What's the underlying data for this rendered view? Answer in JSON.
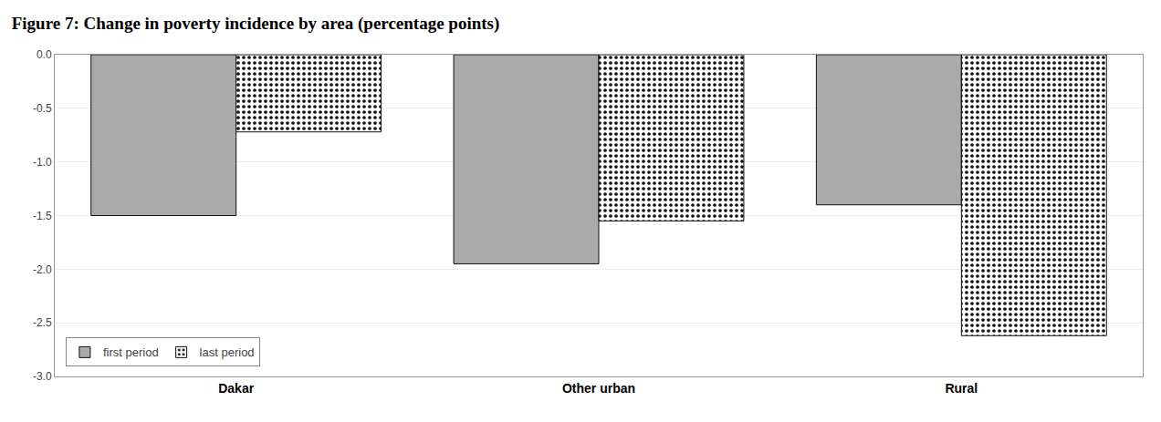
{
  "chart_data": {
    "type": "bar",
    "title": "Figure 7: Change in poverty incidence by area (percentage points)",
    "categories": [
      "Dakar",
      "Other urban",
      "Rural"
    ],
    "series": [
      {
        "name": "first period",
        "color": "#aaaaaa",
        "values": [
          -1.5,
          -1.95,
          -1.4
        ]
      },
      {
        "name": "last period",
        "color": "#ffffff",
        "values": [
          -0.72,
          -1.55,
          -2.62
        ]
      }
    ],
    "ylim": [
      -3.0,
      0.0
    ],
    "yticks": [
      {
        "value": 0,
        "label": "0.0"
      },
      -0.5,
      {
        "value": -1,
        "label": "-1.0"
      },
      -1.5,
      {
        "value": -2,
        "label": "-2.0"
      },
      -2.5,
      {
        "value": -3,
        "label": "-3.0"
      }
    ],
    "grid": true,
    "legend": "lower left"
  }
}
